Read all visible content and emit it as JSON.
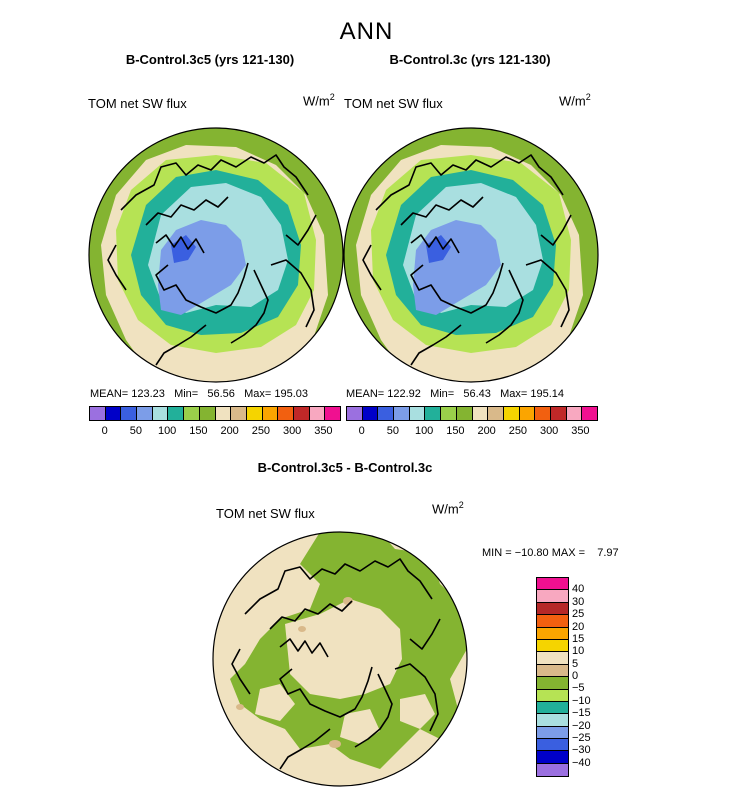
{
  "season": "ANN",
  "colors": {
    "abs_scale": [
      "#9b70e0",
      "#0000c8",
      "#3a5fe0",
      "#7c9de8",
      "#a9dfe0",
      "#22b09a",
      "#9ad04a",
      "#84b431",
      "#f0e2c0",
      "#d9b98a",
      "#f5d400",
      "#fba500",
      "#f26010",
      "#c02828",
      "#f8a8c0",
      "#f01090"
    ],
    "diff_scale": [
      "#f01090",
      "#f8a8c0",
      "#b52828",
      "#f26010",
      "#fba500",
      "#f5d400",
      "#f0e2c0",
      "#d9b98a",
      "#84b431",
      "#b6e354",
      "#22b09a",
      "#a9dfe0",
      "#7c9de8",
      "#3a5fe0",
      "#0000c8",
      "#9b70e0"
    ]
  },
  "panel_left": {
    "title": "B-Control.3c5 (yrs 121-130)",
    "variable": "TOM net SW flux",
    "units": "W/m",
    "units_exp": "2",
    "stats": "MEAN= 123.23   Min=   56.56   Max= 195.03"
  },
  "panel_right": {
    "title": "B-Control.3c (yrs 121-130)",
    "variable": "TOM net SW flux",
    "units": "W/m",
    "units_exp": "2",
    "stats": "MEAN= 122.92   Min=   56.43   Max= 195.14"
  },
  "panel_diff": {
    "title": "B-Control.3c5 - B-Control.3c",
    "variable": "TOM net SW flux",
    "units": "W/m",
    "units_exp": "2",
    "minmax": "MIN = −10.80 MAX =    7.97"
  },
  "abs_scale_labels": [
    "0",
    "50",
    "100",
    "150",
    "200",
    "250",
    "300",
    "350"
  ],
  "diff_scale_labels": [
    "40",
    "30",
    "25",
    "20",
    "15",
    "10",
    "5",
    "0",
    "−5",
    "−10",
    "−15",
    "−20",
    "−25",
    "−30",
    "−40"
  ]
}
